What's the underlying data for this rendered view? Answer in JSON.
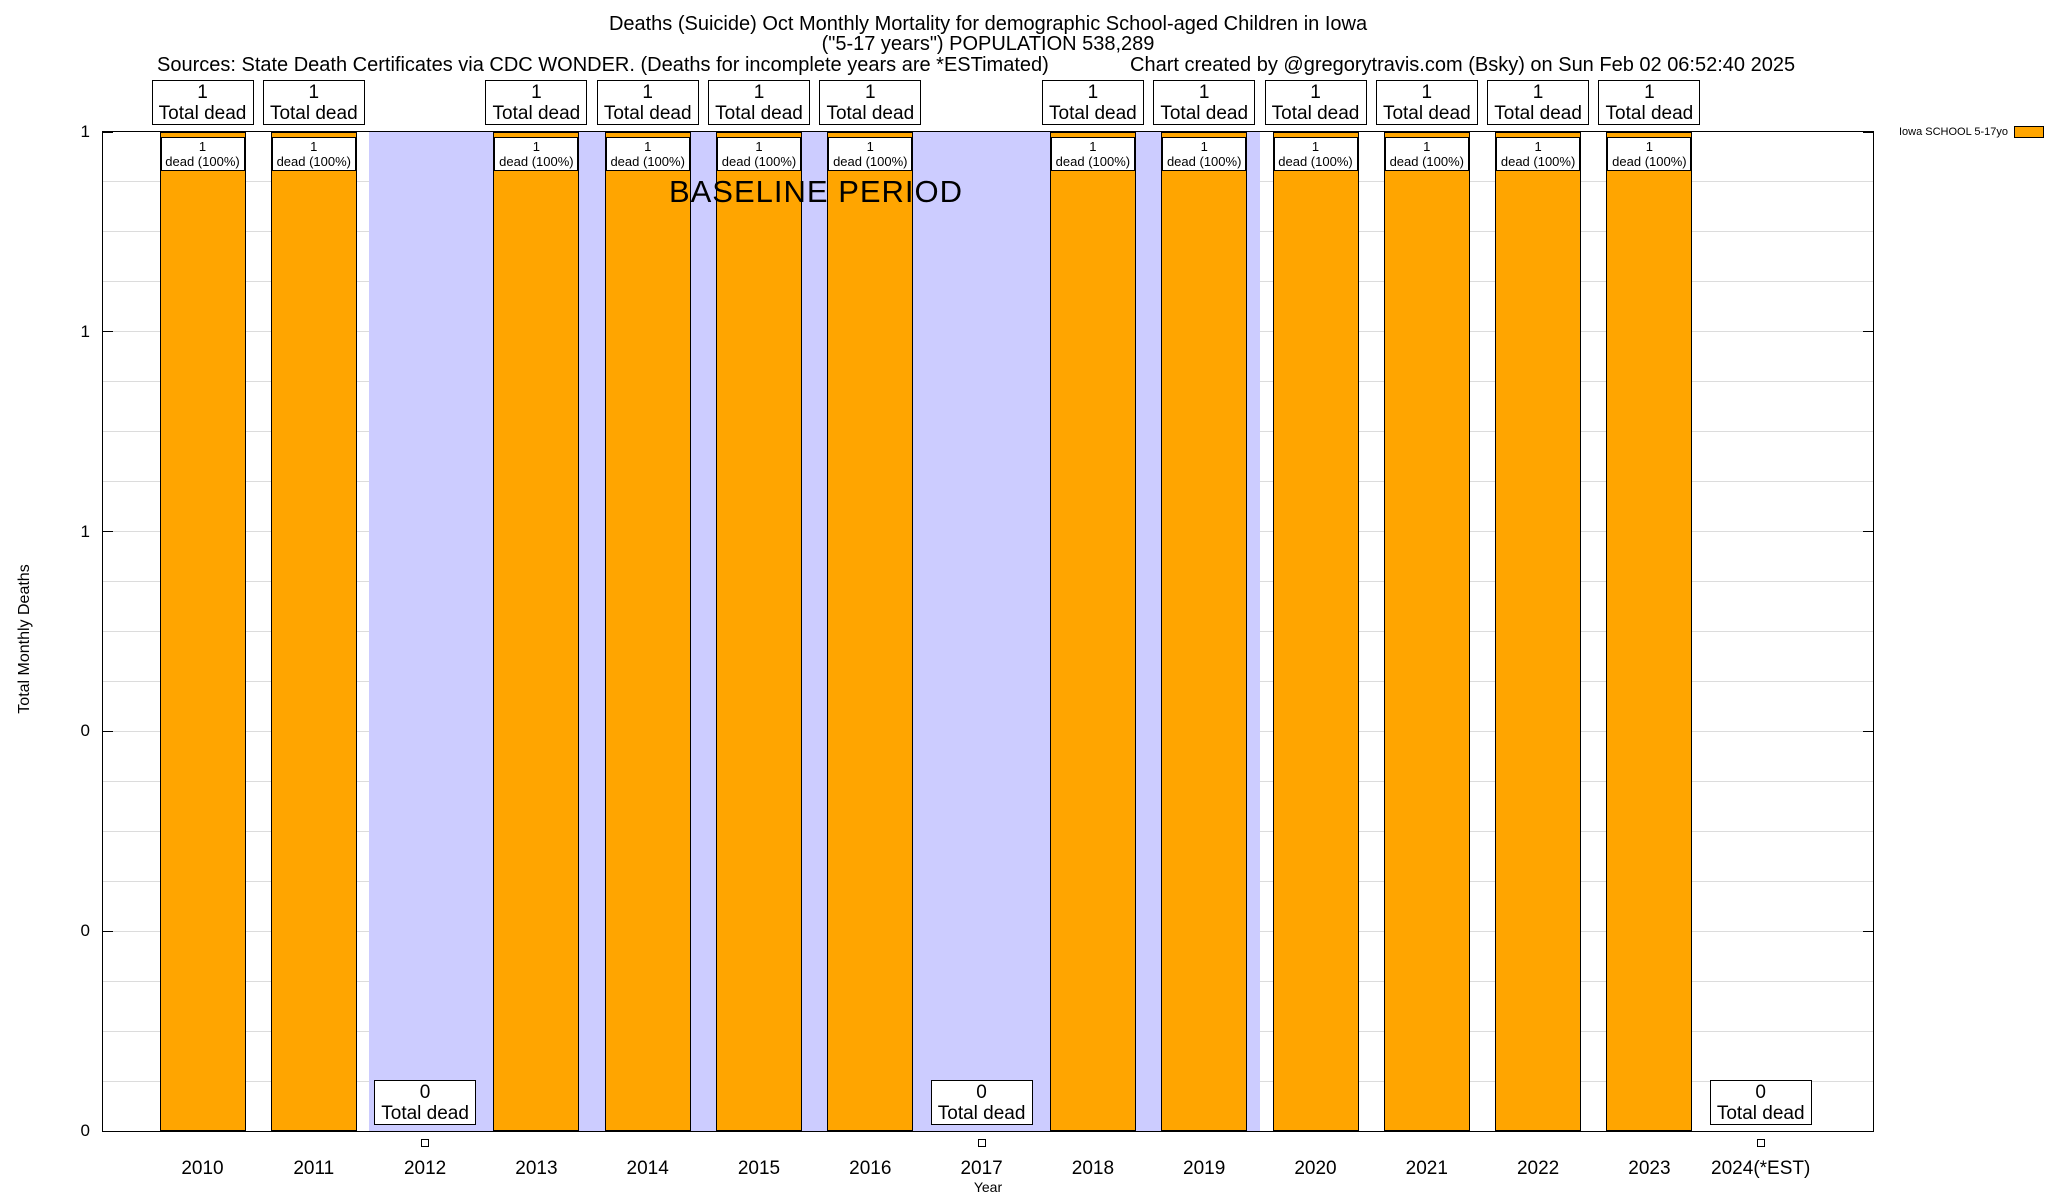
{
  "header": {
    "title_line1": "Deaths (Suicide) Oct Monthly Mortality for demographic School-aged Children in Iowa",
    "title_line2": "(\"5-17 years\") POPULATION 538,289",
    "sources": "Sources: State Death Certificates via CDC WONDER. (Deaths for incomplete years are *ESTimated)",
    "credit": "Chart created by @gregorytravis.com (Bsky) on Sun Feb 02 06:52:40 2025"
  },
  "legend": {
    "label": "Iowa SCHOOL 5-17yo",
    "swatch_color": "#FFA500"
  },
  "axes": {
    "y_label": "Total Monthly Deaths",
    "x_label": "Year",
    "y_tick_labels_top_to_bottom": [
      "1",
      "1",
      "1",
      "0",
      "0",
      "0"
    ]
  },
  "annotations": {
    "baseline_label": "BASELINE PERIOD"
  },
  "colors": {
    "bar": "#FFA500",
    "baseline_region": "#CCCCFF",
    "grid": "#DCDCDC"
  },
  "chart_data": {
    "type": "bar",
    "title": "Deaths (Suicide) Oct Monthly Mortality for demographic School-aged Children in Iowa (\"5-17 years\") POPULATION 538,289",
    "xlabel": "Year",
    "ylabel": "Total Monthly Deaths",
    "ylim": [
      0,
      1
    ],
    "grid": true,
    "legend_position": "top-right",
    "categories": [
      "2010",
      "2011",
      "2012",
      "2013",
      "2014",
      "2015",
      "2016",
      "2017",
      "2018",
      "2019",
      "2020",
      "2021",
      "2022",
      "2023",
      "2024(*EST)"
    ],
    "series": [
      {
        "name": "Iowa SCHOOL 5-17yo",
        "values": [
          1,
          1,
          0,
          1,
          1,
          1,
          1,
          0,
          1,
          1,
          1,
          1,
          1,
          1,
          0
        ]
      }
    ],
    "baseline_period": {
      "from": "2012",
      "to": "2019",
      "label": "BASELINE PERIOD"
    },
    "bars": [
      {
        "year": "2010",
        "value": 1,
        "top_box": [
          "1",
          "Total dead"
        ],
        "inner_box": [
          "1",
          "dead (100%)"
        ]
      },
      {
        "year": "2011",
        "value": 1,
        "top_box": [
          "1",
          "Total dead"
        ],
        "inner_box": [
          "1",
          "dead (100%)"
        ]
      },
      {
        "year": "2012",
        "value": 0,
        "zero_box": [
          "0",
          "Total dead"
        ]
      },
      {
        "year": "2013",
        "value": 1,
        "top_box": [
          "1",
          "Total dead"
        ],
        "inner_box": [
          "1",
          "dead (100%)"
        ]
      },
      {
        "year": "2014",
        "value": 1,
        "top_box": [
          "1",
          "Total dead"
        ],
        "inner_box": [
          "1",
          "dead (100%)"
        ]
      },
      {
        "year": "2015",
        "value": 1,
        "top_box": [
          "1",
          "Total dead"
        ],
        "inner_box": [
          "1",
          "dead (100%)"
        ]
      },
      {
        "year": "2016",
        "value": 1,
        "top_box": [
          "1",
          "Total dead"
        ],
        "inner_box": [
          "1",
          "dead (100%)"
        ]
      },
      {
        "year": "2017",
        "value": 0,
        "zero_box": [
          "0",
          "Total dead"
        ]
      },
      {
        "year": "2018",
        "value": 1,
        "top_box": [
          "1",
          "Total dead"
        ],
        "inner_box": [
          "1",
          "dead (100%)"
        ]
      },
      {
        "year": "2019",
        "value": 1,
        "top_box": [
          "1",
          "Total dead"
        ],
        "inner_box": [
          "1",
          "dead (100%)"
        ]
      },
      {
        "year": "2020",
        "value": 1,
        "top_box": [
          "1",
          "Total dead"
        ],
        "inner_box": [
          "1",
          "dead (100%)"
        ]
      },
      {
        "year": "2021",
        "value": 1,
        "top_box": [
          "1",
          "Total dead"
        ],
        "inner_box": [
          "1",
          "dead (100%)"
        ]
      },
      {
        "year": "2022",
        "value": 1,
        "top_box": [
          "1",
          "Total dead"
        ],
        "inner_box": [
          "1",
          "dead (100%)"
        ]
      },
      {
        "year": "2023",
        "value": 1,
        "top_box": [
          "1",
          "Total dead"
        ],
        "inner_box": [
          "1",
          "dead (100%)"
        ]
      },
      {
        "year": "2024(*EST)",
        "value": 0,
        "zero_box": [
          "0",
          "Total dead"
        ]
      }
    ]
  }
}
